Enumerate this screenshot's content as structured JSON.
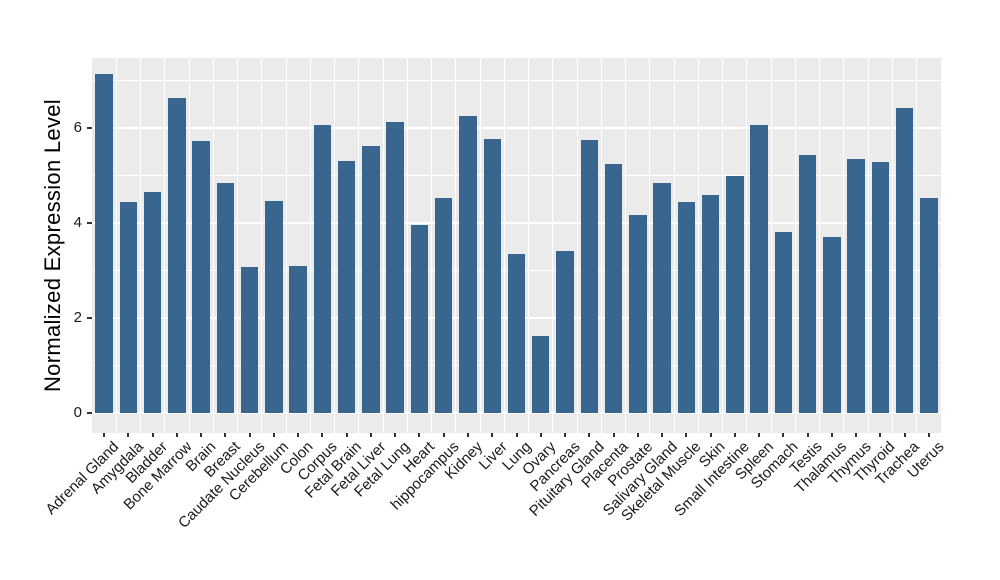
{
  "chart_data": {
    "type": "bar",
    "title": "",
    "xlabel": "",
    "ylabel": "Normalized Expression Level",
    "categories": [
      "Adrenal Gland",
      "Amygdala",
      "Bladder",
      "Bone Marrow",
      "Brain",
      "Breast",
      "Caudate Nucleus",
      "Cerebellum",
      "Colon",
      "Corpus",
      "Fetal Brain",
      "Fetal Liver",
      "Fetal Lung",
      "Heart",
      "hippocampus",
      "Kidney",
      "Liver",
      "Lung",
      "Ovary",
      "Pancreas",
      "Pituitary Gland",
      "Placenta",
      "Prostate",
      "Salivary Gland",
      "Skeletal Muscle",
      "Skin",
      "Small Intestine",
      "Spleen",
      "Stomach",
      "Testis",
      "Thalamus",
      "Thymus",
      "Thyroid",
      "Trachea",
      "Uterus"
    ],
    "values": [
      7.14,
      4.44,
      4.65,
      6.63,
      5.73,
      4.84,
      3.07,
      4.46,
      3.1,
      6.06,
      5.31,
      5.62,
      6.12,
      3.96,
      4.52,
      6.25,
      5.76,
      3.35,
      1.62,
      3.42,
      5.75,
      5.24,
      4.16,
      4.84,
      4.45,
      4.59,
      4.99,
      6.06,
      3.82,
      5.44,
      3.71,
      5.35,
      5.28,
      6.43,
      4.52
    ],
    "ylim": [
      0,
      7.47
    ],
    "yticks": [
      0,
      2,
      4,
      6
    ],
    "ytick_labels": [
      "0",
      "2",
      "4",
      "6"
    ],
    "minor_yticks": [
      1,
      3,
      5,
      7
    ],
    "grid": "on",
    "legend": "none",
    "bar_color": "#39668F",
    "panel_background": "#EBEBEB",
    "grid_color": "#FFFFFF",
    "axis_text_color": "#1A1A1A",
    "axis_title_color": "#000000",
    "tick_mark_color": "#333333",
    "figure_background": "#FFFFFF"
  }
}
